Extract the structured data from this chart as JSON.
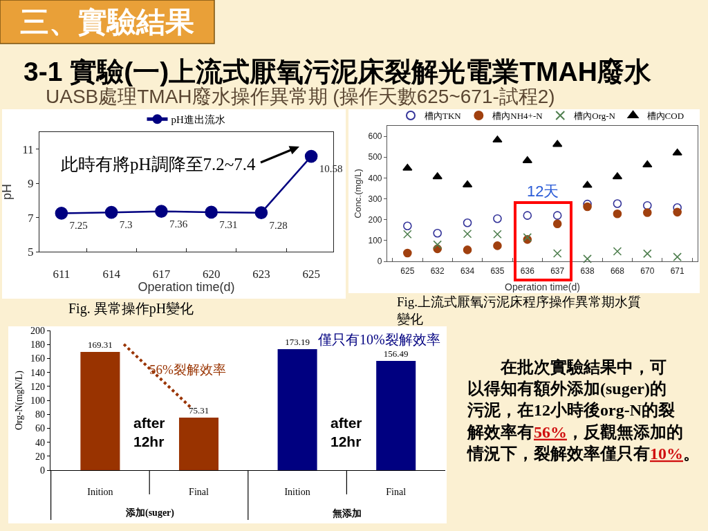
{
  "chart_data": [
    {
      "type": "other",
      "title": "三、實驗結果",
      "subtitle": "3-1 實驗(一)上流式厭氧污泥床裂解光電業TMAH廢水",
      "annotations": [
        "UASB處理TMAH廢水操作異常期 (操作天數625~671-試程2)"
      ]
    },
    {
      "type": "line",
      "categories": [
        "611",
        "614",
        "617",
        "620",
        "623",
        "625"
      ],
      "series": [
        {
          "name": "pH進出流水",
          "color": "#000080",
          "values": [
            7.25,
            7.3,
            7.36,
            7.31,
            7.28,
            10.58
          ]
        }
      ],
      "ylim": [
        5,
        12
      ],
      "yticks": [
        5,
        7,
        9,
        11
      ],
      "xlabel": "Operation time(d)",
      "ylabel": "pH",
      "legend": "top",
      "marker": "circle",
      "data_labels": true,
      "annotations": [
        "此時有將pH調降至7.2~7.4",
        "Fig. 異常操作pH變化"
      ]
    },
    {
      "type": "scatter",
      "categories": [
        "625",
        "632",
        "634",
        "635",
        "636",
        "637",
        "638",
        "668",
        "670",
        "671"
      ],
      "series": [
        {
          "name": "槽內TKN",
          "color": "#333399",
          "marker": "circle-open",
          "values": [
            170,
            135,
            185,
            205,
            220,
            220,
            275,
            277,
            268,
            258
          ]
        },
        {
          "name": "槽內NH4+-N",
          "color": "#a0400f",
          "marker": "circle",
          "values": [
            40,
            60,
            55,
            75,
            105,
            180,
            262,
            228,
            234,
            236
          ]
        },
        {
          "name": "槽內Org-N",
          "color": "#4f7f4f",
          "marker": "cross",
          "values": [
            130,
            80,
            132,
            130,
            115,
            38,
            12,
            48,
            37,
            21
          ]
        },
        {
          "name": "槽內COD",
          "color": "#000000",
          "marker": "triangle",
          "values": [
            447,
            406,
            367,
            582,
            483,
            561,
            365,
            406,
            463,
            520
          ]
        }
      ],
      "ylim": [
        0,
        650
      ],
      "yticks": [
        0,
        100,
        200,
        300,
        400,
        500,
        600
      ],
      "xlabel": "Operation time(d)",
      "ylabel": "Conc.(mg/L)",
      "legend": "top",
      "annotations": [
        "12天",
        "Fig.上流式厭氧污泥床程序操作異常期水質變化"
      ]
    },
    {
      "type": "bar",
      "categories": [
        "Inition",
        "Final",
        "Inition",
        "Final"
      ],
      "values": [
        169.31,
        75.31,
        173.19,
        156.49
      ],
      "colors": [
        "#993300",
        "#993300",
        "#000080",
        "#000080"
      ],
      "ylim": [
        0,
        200
      ],
      "yticks": [
        0,
        20,
        40,
        60,
        80,
        100,
        120,
        140,
        160,
        180,
        200
      ],
      "ylabel": "Org-N(mgN/L)",
      "data_labels": true,
      "annotations": [
        "56%裂解效率",
        "僅只有10%裂解效率",
        "after\n12hr",
        "after\n12hr",
        "添加(suger)",
        "無添加"
      ]
    },
    {
      "type": "other",
      "annotations": [
        "在批次實驗結果中，可以得知有額外添加(suger)的污泥，在12小時後org-N的裂解效率有56%，反觀無添加的情況下，裂解效率僅只有10%。"
      ]
    }
  ]
}
